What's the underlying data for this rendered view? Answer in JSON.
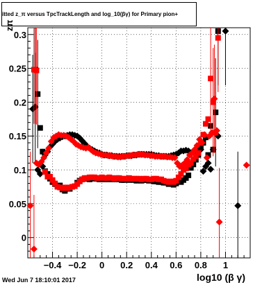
{
  "header": {
    "title": "itted  z_π versus TpcTrackLength and log_10(βγ) for Primary pion+",
    "timestamp": "Wed Jun  7 18:10:01 2017"
  },
  "chart_data": {
    "type": "scatter",
    "title": "itted  z_π versus TpcTrackLength and log_10(βγ) for Primary pion+",
    "xlabel": "log10 (β γ)",
    "ylabel": "zπ",
    "xlim": [
      -0.6,
      1.2
    ],
    "ylim": [
      -0.03,
      0.31
    ],
    "grid": true,
    "x_ticks": [
      -0.4,
      -0.2,
      0,
      0.2,
      0.4,
      0.6,
      0.8,
      1
    ],
    "x_tick_labels": [
      "−0.4",
      "−0.2",
      "0",
      "0.2",
      "0.4",
      "0.6",
      "0.8",
      "1"
    ],
    "y_ticks": [
      0,
      0.05,
      0.1,
      0.15,
      0.2,
      0.25,
      0.3
    ],
    "y_tick_labels": [
      "0",
      "0.05",
      "0.1",
      "0.15",
      "0.2",
      "0.25",
      "0.3"
    ],
    "series": [
      {
        "color": "#000000",
        "marker": "square",
        "points": [
          [
            -0.54,
            0.248
          ],
          [
            -0.52,
            0.212
          ],
          [
            -0.5,
            0.162
          ],
          [
            -0.48,
            0.127
          ],
          [
            -0.46,
            0.098
          ],
          [
            -0.44,
            0.094
          ],
          [
            -0.42,
            0.087
          ],
          [
            -0.4,
            0.082
          ],
          [
            -0.38,
            0.079
          ],
          [
            -0.36,
            0.076
          ],
          [
            -0.34,
            0.077
          ],
          [
            -0.32,
            0.071
          ],
          [
            -0.3,
            0.069
          ],
          [
            -0.28,
            0.074
          ],
          [
            -0.26,
            0.072
          ],
          [
            -0.24,
            0.075
          ],
          [
            -0.22,
            0.076
          ],
          [
            -0.2,
            0.081
          ],
          [
            -0.18,
            0.084
          ],
          [
            -0.16,
            0.086
          ],
          [
            -0.14,
            0.087
          ],
          [
            -0.12,
            0.087
          ],
          [
            -0.1,
            0.086
          ],
          [
            -0.08,
            0.088
          ],
          [
            -0.06,
            0.087
          ],
          [
            -0.04,
            0.087
          ],
          [
            -0.02,
            0.086
          ],
          [
            0.0,
            0.088
          ],
          [
            0.02,
            0.086
          ],
          [
            0.04,
            0.087
          ],
          [
            0.06,
            0.086
          ],
          [
            0.08,
            0.087
          ],
          [
            0.1,
            0.086
          ],
          [
            0.12,
            0.087
          ],
          [
            0.14,
            0.086
          ],
          [
            0.16,
            0.085
          ],
          [
            0.18,
            0.085
          ],
          [
            0.2,
            0.086
          ],
          [
            0.22,
            0.085
          ],
          [
            0.24,
            0.086
          ],
          [
            0.26,
            0.085
          ],
          [
            0.28,
            0.084
          ],
          [
            0.3,
            0.085
          ],
          [
            0.32,
            0.084
          ],
          [
            0.34,
            0.085
          ],
          [
            0.36,
            0.085
          ],
          [
            0.38,
            0.084
          ],
          [
            0.4,
            0.085
          ],
          [
            0.42,
            0.083
          ],
          [
            0.44,
            0.083
          ],
          [
            0.46,
            0.082
          ],
          [
            0.48,
            0.082
          ],
          [
            0.5,
            0.081
          ],
          [
            0.52,
            0.081
          ],
          [
            0.54,
            0.079
          ],
          [
            0.56,
            0.08
          ],
          [
            0.58,
            0.078
          ],
          [
            0.6,
            0.08
          ],
          [
            0.62,
            0.083
          ],
          [
            0.64,
            0.082
          ],
          [
            0.66,
            0.085
          ],
          [
            0.68,
            0.088
          ],
          [
            0.7,
            0.092
          ],
          [
            0.72,
            0.103
          ],
          [
            0.74,
            0.108
          ],
          [
            0.76,
            0.115
          ],
          [
            0.78,
            0.122
          ],
          [
            0.8,
            0.133
          ],
          [
            0.82,
            0.14
          ],
          [
            0.84,
            0.148
          ],
          [
            0.86,
            0.122
          ],
          [
            0.88,
            0.165
          ],
          [
            0.9,
            0.13
          ],
          [
            0.92,
            0.185
          ],
          [
            0.94,
            0.305
          ]
        ]
      },
      {
        "color": "#000000",
        "marker": "diamond",
        "points": [
          [
            -0.56,
            0.19
          ],
          [
            -0.54,
            0.193
          ],
          [
            -0.52,
            0.1
          ],
          [
            -0.5,
            0.094
          ],
          [
            -0.48,
            0.105
          ],
          [
            -0.46,
            0.122
          ],
          [
            -0.44,
            0.127
          ],
          [
            -0.42,
            0.134
          ],
          [
            -0.4,
            0.138
          ],
          [
            -0.38,
            0.142
          ],
          [
            -0.36,
            0.145
          ],
          [
            -0.34,
            0.147
          ],
          [
            -0.32,
            0.149
          ],
          [
            -0.3,
            0.15
          ],
          [
            -0.28,
            0.151
          ],
          [
            -0.26,
            0.152
          ],
          [
            -0.24,
            0.152
          ],
          [
            -0.22,
            0.151
          ],
          [
            -0.2,
            0.15
          ],
          [
            -0.18,
            0.147
          ],
          [
            -0.16,
            0.143
          ],
          [
            -0.14,
            0.139
          ],
          [
            -0.12,
            0.135
          ],
          [
            -0.1,
            0.132
          ],
          [
            -0.08,
            0.13
          ],
          [
            -0.06,
            0.128
          ],
          [
            -0.04,
            0.126
          ],
          [
            -0.02,
            0.125
          ],
          [
            0.0,
            0.123
          ],
          [
            0.02,
            0.122
          ],
          [
            0.04,
            0.122
          ],
          [
            0.06,
            0.121
          ],
          [
            0.08,
            0.121
          ],
          [
            0.1,
            0.12
          ],
          [
            0.12,
            0.12
          ],
          [
            0.14,
            0.12
          ],
          [
            0.16,
            0.12
          ],
          [
            0.18,
            0.12
          ],
          [
            0.2,
            0.121
          ],
          [
            0.22,
            0.121
          ],
          [
            0.24,
            0.121
          ],
          [
            0.26,
            0.122
          ],
          [
            0.28,
            0.122
          ],
          [
            0.3,
            0.123
          ],
          [
            0.32,
            0.123
          ],
          [
            0.34,
            0.123
          ],
          [
            0.36,
            0.123
          ],
          [
            0.38,
            0.123
          ],
          [
            0.4,
            0.123
          ],
          [
            0.42,
            0.122
          ],
          [
            0.44,
            0.121
          ],
          [
            0.46,
            0.121
          ],
          [
            0.48,
            0.12
          ],
          [
            0.5,
            0.12
          ],
          [
            0.52,
            0.12
          ],
          [
            0.54,
            0.12
          ],
          [
            0.56,
            0.121
          ],
          [
            0.58,
            0.122
          ],
          [
            0.6,
            0.123
          ],
          [
            0.62,
            0.125
          ],
          [
            0.64,
            0.128
          ],
          [
            0.66,
            0.128
          ],
          [
            0.68,
            0.129
          ],
          [
            0.7,
            0.128
          ],
          [
            0.72,
            0.125
          ],
          [
            0.74,
            0.127
          ],
          [
            0.76,
            0.128
          ],
          [
            0.78,
            0.133
          ],
          [
            0.8,
            0.13
          ],
          [
            0.82,
            0.098
          ],
          [
            0.84,
            0.105
          ],
          [
            0.86,
            0.11
          ],
          [
            0.88,
            0.101
          ],
          [
            0.9,
            0.13
          ],
          [
            0.94,
            0.15
          ],
          [
            1.0,
            0.305
          ],
          [
            1.1,
            0.047
          ]
        ]
      },
      {
        "color": "#ff0000",
        "marker": "square",
        "points": [
          [
            -0.55,
            0.248
          ],
          [
            -0.53,
            0.247
          ],
          [
            -0.46,
            0.097
          ],
          [
            -0.44,
            0.09
          ],
          [
            -0.42,
            0.09
          ],
          [
            -0.4,
            0.085
          ],
          [
            -0.38,
            0.08
          ],
          [
            -0.36,
            0.075
          ],
          [
            -0.34,
            0.074
          ],
          [
            -0.32,
            0.073
          ],
          [
            -0.3,
            0.074
          ],
          [
            -0.28,
            0.073
          ],
          [
            -0.26,
            0.074
          ],
          [
            -0.24,
            0.075
          ],
          [
            -0.22,
            0.076
          ],
          [
            -0.2,
            0.079
          ],
          [
            -0.18,
            0.083
          ],
          [
            -0.16,
            0.086
          ],
          [
            -0.14,
            0.088
          ],
          [
            -0.12,
            0.088
          ],
          [
            -0.1,
            0.089
          ],
          [
            -0.08,
            0.089
          ],
          [
            -0.06,
            0.089
          ],
          [
            -0.04,
            0.088
          ],
          [
            -0.02,
            0.088
          ],
          [
            0.0,
            0.089
          ],
          [
            0.02,
            0.088
          ],
          [
            0.04,
            0.088
          ],
          [
            0.06,
            0.089
          ],
          [
            0.08,
            0.088
          ],
          [
            0.1,
            0.087
          ],
          [
            0.12,
            0.088
          ],
          [
            0.14,
            0.088
          ],
          [
            0.16,
            0.087
          ],
          [
            0.18,
            0.087
          ],
          [
            0.2,
            0.087
          ],
          [
            0.22,
            0.088
          ],
          [
            0.24,
            0.087
          ],
          [
            0.26,
            0.087
          ],
          [
            0.28,
            0.087
          ],
          [
            0.3,
            0.087
          ],
          [
            0.32,
            0.086
          ],
          [
            0.34,
            0.087
          ],
          [
            0.36,
            0.087
          ],
          [
            0.38,
            0.086
          ],
          [
            0.4,
            0.086
          ],
          [
            0.42,
            0.087
          ],
          [
            0.44,
            0.087
          ],
          [
            0.46,
            0.086
          ],
          [
            0.48,
            0.086
          ],
          [
            0.5,
            0.084
          ],
          [
            0.52,
            0.083
          ],
          [
            0.54,
            0.082
          ],
          [
            0.56,
            0.083
          ],
          [
            0.58,
            0.082
          ],
          [
            0.6,
            0.084
          ],
          [
            0.62,
            0.089
          ],
          [
            0.64,
            0.094
          ],
          [
            0.66,
            0.1
          ],
          [
            0.68,
            0.102
          ],
          [
            0.7,
            0.108
          ],
          [
            0.72,
            0.11
          ],
          [
            0.74,
            0.116
          ],
          [
            0.76,
            0.12
          ],
          [
            0.78,
            0.125
          ],
          [
            0.8,
            0.14
          ],
          [
            0.82,
            0.152
          ],
          [
            0.84,
            0.168
          ],
          [
            0.86,
            0.175
          ],
          [
            0.88,
            0.235
          ],
          [
            0.9,
            0.2
          ],
          [
            0.92,
            0.155
          ],
          [
            0.94,
            0.295
          ]
        ]
      },
      {
        "color": "#ff0000",
        "marker": "diamond",
        "points": [
          [
            -0.58,
            0.047
          ],
          [
            -0.55,
            -0.017
          ],
          [
            -0.53,
            0.11
          ],
          [
            -0.51,
            0.108
          ],
          [
            -0.49,
            0.112
          ],
          [
            -0.47,
            0.118
          ],
          [
            -0.45,
            0.125
          ],
          [
            -0.43,
            0.132
          ],
          [
            -0.41,
            0.142
          ],
          [
            -0.39,
            0.148
          ],
          [
            -0.37,
            0.15
          ],
          [
            -0.35,
            0.152
          ],
          [
            -0.33,
            0.151
          ],
          [
            -0.31,
            0.151
          ],
          [
            -0.29,
            0.15
          ],
          [
            -0.27,
            0.148
          ],
          [
            -0.25,
            0.145
          ],
          [
            -0.23,
            0.142
          ],
          [
            -0.21,
            0.138
          ],
          [
            -0.19,
            0.136
          ],
          [
            -0.17,
            0.134
          ],
          [
            -0.15,
            0.133
          ],
          [
            -0.13,
            0.132
          ],
          [
            -0.11,
            0.133
          ],
          [
            -0.09,
            0.13
          ],
          [
            -0.07,
            0.127
          ],
          [
            -0.05,
            0.125
          ],
          [
            -0.03,
            0.124
          ],
          [
            -0.01,
            0.123
          ],
          [
            0.01,
            0.122
          ],
          [
            0.03,
            0.122
          ],
          [
            0.05,
            0.121
          ],
          [
            0.07,
            0.121
          ],
          [
            0.09,
            0.12
          ],
          [
            0.11,
            0.12
          ],
          [
            0.13,
            0.119
          ],
          [
            0.15,
            0.119
          ],
          [
            0.17,
            0.12
          ],
          [
            0.19,
            0.12
          ],
          [
            0.21,
            0.121
          ],
          [
            0.23,
            0.121
          ],
          [
            0.25,
            0.122
          ],
          [
            0.27,
            0.122
          ],
          [
            0.29,
            0.123
          ],
          [
            0.31,
            0.123
          ],
          [
            0.33,
            0.123
          ],
          [
            0.35,
            0.122
          ],
          [
            0.37,
            0.122
          ],
          [
            0.39,
            0.121
          ],
          [
            0.41,
            0.121
          ],
          [
            0.43,
            0.12
          ],
          [
            0.45,
            0.12
          ],
          [
            0.47,
            0.12
          ],
          [
            0.49,
            0.12
          ],
          [
            0.51,
            0.12
          ],
          [
            0.53,
            0.119
          ],
          [
            0.55,
            0.119
          ],
          [
            0.57,
            0.118
          ],
          [
            0.59,
            0.118
          ],
          [
            0.61,
            0.11
          ],
          [
            0.63,
            0.105
          ],
          [
            0.65,
            0.107
          ],
          [
            0.67,
            0.11
          ],
          [
            0.69,
            0.115
          ],
          [
            0.71,
            0.122
          ],
          [
            0.73,
            0.125
          ],
          [
            0.75,
            0.13
          ],
          [
            0.77,
            0.136
          ],
          [
            0.79,
            0.145
          ],
          [
            0.81,
            0.14
          ],
          [
            0.83,
            0.152
          ],
          [
            0.85,
            0.118
          ],
          [
            0.87,
            0.15
          ],
          [
            0.89,
            0.155
          ],
          [
            0.91,
            0.205
          ],
          [
            0.93,
            0.158
          ],
          [
            0.95,
            0.023
          ],
          [
            1.17,
            0.107
          ]
        ]
      }
    ]
  }
}
